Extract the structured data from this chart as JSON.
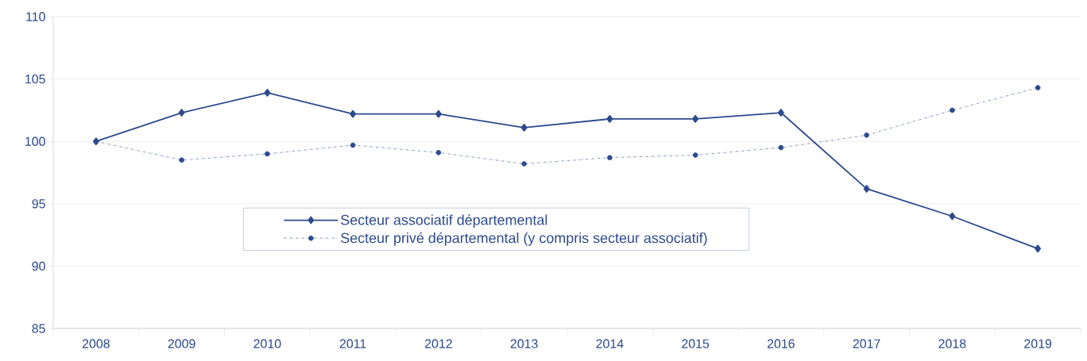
{
  "chart_data": {
    "type": "line",
    "categories": [
      "2008",
      "2009",
      "2010",
      "2011",
      "2012",
      "2013",
      "2014",
      "2015",
      "2016",
      "2017",
      "2018",
      "2019"
    ],
    "series": [
      {
        "name": "Secteur associatif départemental",
        "color": "#2e4a8c",
        "marker": "diamond",
        "line_style": "solid",
        "values": [
          100,
          102.3,
          103.9,
          102.2,
          102.2,
          101.1,
          101.8,
          101.8,
          102.3,
          96.2,
          94.0,
          91.4
        ]
      },
      {
        "name": "Secteur privé départemental (y compris secteur associatif)",
        "color": "#2e4a8c",
        "marker": "circle",
        "line_style": "dashed",
        "values": [
          100,
          98.5,
          99.0,
          99.7,
          99.1,
          98.2,
          98.7,
          98.9,
          99.5,
          100.5,
          102.5,
          104.3
        ]
      }
    ],
    "ylim": [
      85,
      110
    ],
    "yticks": [
      85,
      90,
      95,
      100,
      105,
      110
    ],
    "grid": "y",
    "legend": "center"
  }
}
